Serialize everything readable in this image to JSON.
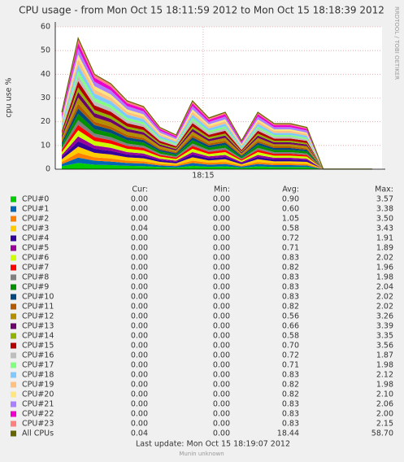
{
  "chart_data": {
    "type": "stacked-area",
    "title": "CPU usage - from Mon Oct 15 18:11:59 2012 to Mon Oct 15 18:18:39 2012",
    "y_label": "cpu use %",
    "watermark": "RRDTOOL / TOBI OETIKER",
    "x": [
      "18:12:07",
      "18:12:27",
      "18:12:47",
      "18:13:07",
      "18:13:27",
      "18:13:47",
      "18:14:07",
      "18:14:27",
      "18:14:47",
      "18:15:07",
      "18:15:27",
      "18:15:47",
      "18:16:07",
      "18:16:27",
      "18:16:47",
      "18:17:07",
      "18:17:27",
      "18:18:27"
    ],
    "xlim": [
      "18:11:59",
      "18:18:39"
    ],
    "xticks": [
      {
        "value": "18:15:00",
        "label": "18:15"
      }
    ],
    "ylim": [
      0,
      60
    ],
    "yticks": [
      0,
      10,
      20,
      30,
      40,
      50,
      60
    ],
    "grid": true,
    "series": [
      {
        "name": "CPU#0",
        "color": "#00CC00",
        "values": [
          1.2,
          2.6,
          1.9,
          1.7,
          1.4,
          1.3,
          0.9,
          0.7,
          1.4,
          1.0,
          1.2,
          0.6,
          1.2,
          0.9,
          0.9,
          0.9,
          0,
          0
        ]
      },
      {
        "name": "CPU#1",
        "color": "#0066B3",
        "values": [
          1.0,
          2.3,
          1.7,
          1.5,
          1.2,
          1.1,
          0.7,
          0.6,
          1.2,
          0.9,
          1.0,
          0.5,
          1.0,
          0.8,
          0.8,
          0.7,
          0,
          0
        ]
      },
      {
        "name": "CPU#2",
        "color": "#FF8000",
        "values": [
          0.8,
          2.0,
          1.4,
          1.3,
          1.0,
          0.9,
          0.6,
          0.5,
          1.0,
          0.8,
          0.8,
          0.4,
          0.8,
          0.7,
          0.7,
          0.6,
          0,
          0
        ]
      },
      {
        "name": "CPU#3",
        "color": "#FFCC00",
        "values": [
          1.2,
          2.6,
          1.9,
          1.7,
          1.4,
          1.3,
          0.9,
          0.7,
          1.4,
          1.0,
          1.2,
          0.6,
          1.2,
          0.9,
          0.9,
          0.9,
          0,
          0.04
        ]
      },
      {
        "name": "CPU#4",
        "color": "#330099",
        "values": [
          1.0,
          2.3,
          1.7,
          1.5,
          1.2,
          1.1,
          0.7,
          0.6,
          1.2,
          0.9,
          1.0,
          0.5,
          1.0,
          0.8,
          0.8,
          0.7,
          0,
          0
        ]
      },
      {
        "name": "CPU#5",
        "color": "#990099",
        "values": [
          0.8,
          2.0,
          1.4,
          1.3,
          1.0,
          0.9,
          0.6,
          0.5,
          1.0,
          0.8,
          0.8,
          0.4,
          0.8,
          0.7,
          0.7,
          0.6,
          0,
          0
        ]
      },
      {
        "name": "CPU#6",
        "color": "#CCFF00",
        "values": [
          1.2,
          2.6,
          1.9,
          1.7,
          1.4,
          1.3,
          0.9,
          0.7,
          1.4,
          1.0,
          1.2,
          0.6,
          1.2,
          0.9,
          0.9,
          0.9,
          0,
          0
        ]
      },
      {
        "name": "CPU#7",
        "color": "#FF0000",
        "values": [
          1.0,
          2.3,
          1.7,
          1.5,
          1.2,
          1.1,
          0.7,
          0.6,
          1.2,
          0.9,
          1.0,
          0.5,
          1.0,
          0.8,
          0.8,
          0.7,
          0,
          0
        ]
      },
      {
        "name": "CPU#8",
        "color": "#808080",
        "values": [
          0.8,
          2.0,
          1.4,
          1.3,
          1.0,
          0.9,
          0.6,
          0.5,
          1.0,
          0.8,
          0.8,
          0.4,
          0.8,
          0.7,
          0.7,
          0.6,
          0,
          0
        ]
      },
      {
        "name": "CPU#9",
        "color": "#008F00",
        "values": [
          1.2,
          2.6,
          1.9,
          1.7,
          1.4,
          1.3,
          0.9,
          0.7,
          1.4,
          1.0,
          1.2,
          0.6,
          1.2,
          0.9,
          0.9,
          0.9,
          0,
          0
        ]
      },
      {
        "name": "CPU#10",
        "color": "#00487D",
        "values": [
          1.0,
          2.3,
          1.7,
          1.5,
          1.2,
          1.1,
          0.7,
          0.6,
          1.2,
          0.9,
          1.0,
          0.5,
          1.0,
          0.8,
          0.8,
          0.7,
          0,
          0
        ]
      },
      {
        "name": "CPU#11",
        "color": "#B35A00",
        "values": [
          0.8,
          2.0,
          1.4,
          1.3,
          1.0,
          0.9,
          0.6,
          0.5,
          1.0,
          0.8,
          0.8,
          0.4,
          0.8,
          0.7,
          0.7,
          0.6,
          0,
          0
        ]
      },
      {
        "name": "CPU#12",
        "color": "#B38F00",
        "values": [
          1.2,
          2.6,
          1.9,
          1.7,
          1.4,
          1.3,
          0.9,
          0.7,
          1.4,
          1.0,
          1.2,
          0.6,
          1.2,
          0.9,
          0.9,
          0.9,
          0,
          0
        ]
      },
      {
        "name": "CPU#13",
        "color": "#6B006B",
        "values": [
          1.0,
          2.3,
          1.7,
          1.5,
          1.2,
          1.1,
          0.7,
          0.6,
          1.2,
          0.9,
          1.0,
          0.5,
          1.0,
          0.8,
          0.8,
          0.7,
          0,
          0
        ]
      },
      {
        "name": "CPU#14",
        "color": "#8FB300",
        "values": [
          0.8,
          2.0,
          1.4,
          1.3,
          1.0,
          0.9,
          0.6,
          0.5,
          1.0,
          0.8,
          0.8,
          0.4,
          0.8,
          0.7,
          0.7,
          0.6,
          0,
          0
        ]
      },
      {
        "name": "CPU#15",
        "color": "#B30000",
        "values": [
          1.2,
          2.6,
          1.9,
          1.7,
          1.4,
          1.3,
          0.9,
          0.7,
          1.4,
          1.0,
          1.2,
          0.6,
          1.2,
          0.9,
          0.9,
          0.9,
          0,
          0
        ]
      },
      {
        "name": "CPU#16",
        "color": "#BEBEBE",
        "values": [
          1.0,
          2.3,
          1.7,
          1.5,
          1.2,
          1.1,
          0.7,
          0.6,
          1.2,
          0.9,
          1.0,
          0.5,
          1.0,
          0.8,
          0.8,
          0.7,
          0,
          0
        ]
      },
      {
        "name": "CPU#17",
        "color": "#80FF80",
        "values": [
          0.8,
          2.0,
          1.4,
          1.3,
          1.0,
          0.9,
          0.6,
          0.5,
          1.0,
          0.8,
          0.8,
          0.4,
          0.8,
          0.7,
          0.7,
          0.6,
          0,
          0
        ]
      },
      {
        "name": "CPU#18",
        "color": "#80C9FF",
        "values": [
          1.2,
          2.6,
          1.9,
          1.7,
          1.4,
          1.3,
          0.9,
          0.7,
          1.4,
          1.0,
          1.2,
          0.6,
          1.2,
          0.9,
          0.9,
          0.9,
          0,
          0
        ]
      },
      {
        "name": "CPU#19",
        "color": "#FFC080",
        "values": [
          1.0,
          2.3,
          1.7,
          1.5,
          1.2,
          1.1,
          0.7,
          0.6,
          1.2,
          0.9,
          1.0,
          0.5,
          1.0,
          0.8,
          0.8,
          0.7,
          0,
          0
        ]
      },
      {
        "name": "CPU#20",
        "color": "#FFE680",
        "values": [
          0.8,
          2.0,
          1.4,
          1.3,
          1.0,
          0.9,
          0.6,
          0.5,
          1.0,
          0.8,
          0.8,
          0.4,
          0.8,
          0.7,
          0.7,
          0.6,
          0,
          0
        ]
      },
      {
        "name": "CPU#21",
        "color": "#AA80FF",
        "values": [
          1.2,
          2.6,
          1.9,
          1.7,
          1.4,
          1.3,
          0.9,
          0.7,
          1.4,
          1.0,
          1.2,
          0.6,
          1.2,
          0.9,
          0.9,
          0.9,
          0,
          0
        ]
      },
      {
        "name": "CPU#22",
        "color": "#EE00CC",
        "values": [
          1.0,
          2.3,
          1.7,
          1.5,
          1.2,
          1.1,
          0.7,
          0.6,
          1.2,
          0.9,
          1.0,
          0.5,
          1.0,
          0.8,
          0.8,
          0.7,
          0,
          0
        ]
      },
      {
        "name": "CPU#23",
        "color": "#FF8080",
        "values": [
          0.8,
          2.0,
          1.4,
          1.3,
          1.0,
          0.9,
          0.6,
          0.5,
          1.0,
          0.8,
          0.8,
          0.4,
          0.8,
          0.7,
          0.7,
          0.6,
          0,
          0
        ]
      },
      {
        "name": "All CPUs",
        "color": "#666600",
        "kind": "line",
        "values": [
          24,
          55.2,
          40,
          36,
          28.8,
          26.4,
          17.6,
          14.4,
          28.8,
          21.6,
          24,
          12,
          24,
          19.2,
          19.2,
          17.6,
          0.04,
          0.04
        ]
      }
    ],
    "legend_headers": [
      "Cur:",
      "Min:",
      "Avg:",
      "Max:"
    ],
    "legend_stats": [
      [
        "0.00",
        "0.00",
        "0.90",
        "3.57"
      ],
      [
        "0.00",
        "0.00",
        "0.60",
        "3.38"
      ],
      [
        "0.00",
        "0.00",
        "1.05",
        "3.50"
      ],
      [
        "0.04",
        "0.00",
        "0.58",
        "3.43"
      ],
      [
        "0.00",
        "0.00",
        "0.72",
        "1.91"
      ],
      [
        "0.00",
        "0.00",
        "0.71",
        "1.89"
      ],
      [
        "0.00",
        "0.00",
        "0.83",
        "2.02"
      ],
      [
        "0.00",
        "0.00",
        "0.82",
        "1.96"
      ],
      [
        "0.00",
        "0.00",
        "0.83",
        "1.98"
      ],
      [
        "0.00",
        "0.00",
        "0.83",
        "2.04"
      ],
      [
        "0.00",
        "0.00",
        "0.83",
        "2.02"
      ],
      [
        "0.00",
        "0.00",
        "0.82",
        "2.02"
      ],
      [
        "0.00",
        "0.00",
        "0.56",
        "3.26"
      ],
      [
        "0.00",
        "0.00",
        "0.66",
        "3.39"
      ],
      [
        "0.00",
        "0.00",
        "0.58",
        "3.35"
      ],
      [
        "0.00",
        "0.00",
        "0.70",
        "3.56"
      ],
      [
        "0.00",
        "0.00",
        "0.72",
        "1.87"
      ],
      [
        "0.00",
        "0.00",
        "0.71",
        "1.98"
      ],
      [
        "0.00",
        "0.00",
        "0.83",
        "2.12"
      ],
      [
        "0.00",
        "0.00",
        "0.82",
        "1.98"
      ],
      [
        "0.00",
        "0.00",
        "0.82",
        "2.10"
      ],
      [
        "0.00",
        "0.00",
        "0.83",
        "2.06"
      ],
      [
        "0.00",
        "0.00",
        "0.83",
        "2.00"
      ],
      [
        "0.00",
        "0.00",
        "0.83",
        "2.15"
      ],
      [
        "0.04",
        "0.00",
        "18.44",
        "58.70"
      ]
    ],
    "last_update": "Last update:  Mon Oct 15 18:19:07 2012",
    "footer": "Munin unknown"
  }
}
